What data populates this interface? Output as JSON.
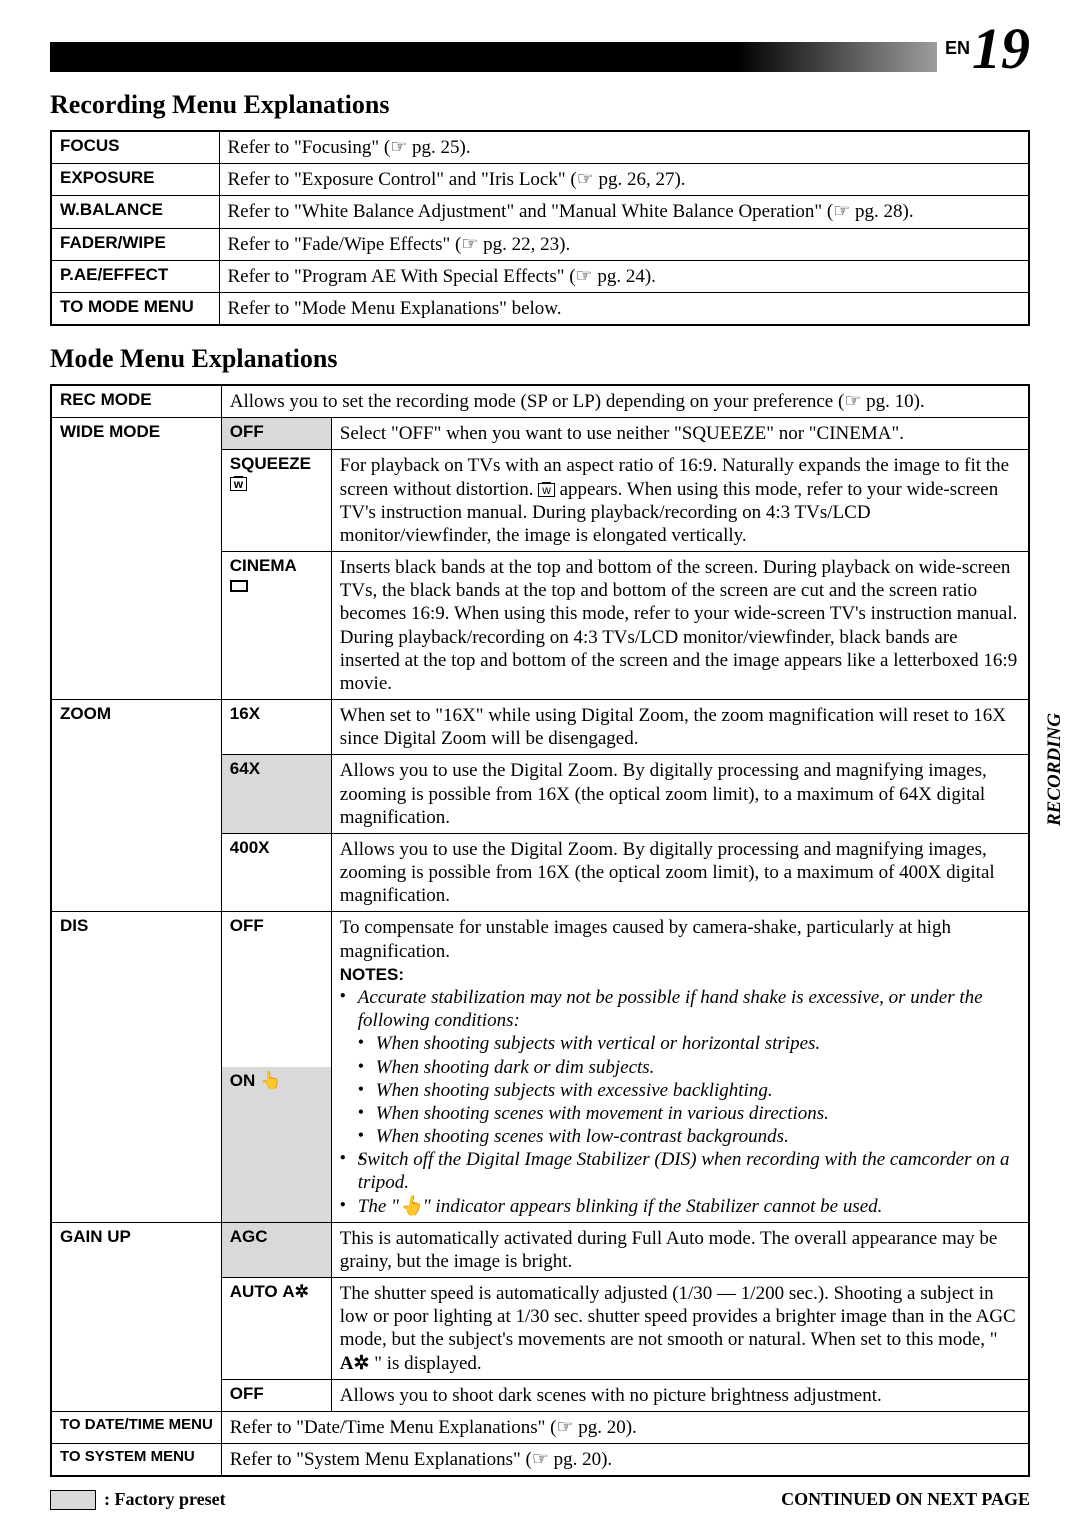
{
  "page": {
    "lang": "EN",
    "number": "19"
  },
  "side_tab": "RECORDING",
  "section1": {
    "title": "Recording Menu Explanations"
  },
  "section2": {
    "title": "Mode Menu Explanations"
  },
  "ref_icon": "☞",
  "table1": {
    "rows": [
      {
        "label": "FOCUS",
        "desc": "Refer to \"Focusing\" (☞ pg. 25)."
      },
      {
        "label": "EXPOSURE",
        "desc": "Refer to \"Exposure Control\" and \"Iris Lock\" (☞ pg. 26, 27)."
      },
      {
        "label": "W.BALANCE",
        "desc": "Refer to \"White Balance Adjustment\" and \"Manual White Balance Operation\" (☞ pg. 28)."
      },
      {
        "label": "FADER/WIPE",
        "desc": "Refer to \"Fade/Wipe Effects\" (☞ pg. 22, 23)."
      },
      {
        "label": "P.AE/EFFECT",
        "desc": "Refer to \"Program AE With Special Effects\" (☞ pg. 24)."
      },
      {
        "label": "TO MODE MENU",
        "desc": "Refer to \"Mode Menu Explanations\" below."
      }
    ]
  },
  "table2": {
    "rec_mode": {
      "label": "REC MODE",
      "desc": "Allows you to set the recording mode (SP or LP) depending on your preference (☞ pg. 10)."
    },
    "wide_mode": {
      "label": "WIDE MODE",
      "off": {
        "opt": "OFF",
        "desc": "Select \"OFF\" when you want to use neither \"SQUEEZE\" nor \"CINEMA\"."
      },
      "squeeze": {
        "opt": "SQUEEZE",
        "icon": "w",
        "desc_pre": "For playback on TVs with an aspect ratio of 16:9. Naturally expands the image to fit the screen without distortion. ",
        "desc_post": " appears. When using this mode, refer to your wide-screen TV's instruction manual. During playback/recording on 4:3 TVs/LCD monitor/viewfinder, the image is elongated vertically."
      },
      "cinema": {
        "opt": "CINEMA",
        "desc": "Inserts black bands at the top and bottom of the screen. During playback on wide-screen TVs, the black bands at the top and bottom of the screen are cut and the screen ratio becomes 16:9. When using this mode, refer to your wide-screen TV's instruction manual. During playback/recording on 4:3 TVs/LCD monitor/viewfinder, black bands are inserted at the top and bottom of the screen and the image appears like a letterboxed 16:9 movie."
      }
    },
    "zoom": {
      "label": "ZOOM",
      "x16": {
        "opt": "16X",
        "desc": "When set to \"16X\" while using Digital Zoom, the zoom magnification will reset to 16X since Digital Zoom will be disengaged."
      },
      "x64": {
        "opt": "64X",
        "desc": "Allows you to use the Digital Zoom. By digitally processing and magnifying images, zooming is possible from 16X (the optical zoom limit), to a maximum of 64X digital magnification."
      },
      "x400": {
        "opt": "400X",
        "desc": "Allows you to use the Digital Zoom. By digitally processing and magnifying images, zooming is possible from 16X (the optical zoom limit), to a maximum of 400X digital magnification."
      }
    },
    "dis": {
      "label": "DIS",
      "off": {
        "opt": "OFF"
      },
      "on": {
        "opt": "ON",
        "icon": "👆"
      },
      "desc_intro": "To compensate for unstable images caused by camera-shake, particularly at high magnification.",
      "notes_label": "NOTES:",
      "notes": [
        "Accurate stabilization may not be possible if hand shake is excessive, or under the following conditions:"
      ],
      "sub_notes_1": [
        "When shooting subjects with vertical or horizontal stripes."
      ],
      "sub_notes_2": [
        "When shooting dark or dim subjects.",
        "When shooting subjects with excessive backlighting.",
        "When shooting scenes with movement in various directions.",
        "When shooting scenes with low-contrast backgrounds."
      ],
      "note2": "Switch off the Digital Image Stabilizer (DIS) when recording with the camcorder on a tripod.",
      "note3_pre": "The \"",
      "note3_icon": "👆",
      "note3_post": "\" indicator appears blinking if the Stabilizer cannot be used."
    },
    "gain_up": {
      "label": "GAIN UP",
      "agc": {
        "opt": "AGC",
        "desc": "This is automatically activated during Full Auto mode. The overall appearance may be grainy, but the image is bright."
      },
      "auto": {
        "opt": "AUTO",
        "icon": "A✲",
        "desc_pre": "The shutter speed is automatically adjusted (1/30 — 1/200 sec.). Shooting a subject in low or poor lighting at 1/30 sec. shutter speed provides a brighter image than in the AGC mode, but the subject's movements are not smooth or natural. When set to this mode, \" ",
        "desc_post": " \" is displayed."
      },
      "off": {
        "opt": "OFF",
        "desc": "Allows you to shoot dark scenes with no picture brightness adjustment."
      }
    },
    "date_menu": {
      "label": "TO DATE/TIME MENU",
      "desc": "Refer to \"Date/Time Menu Explanations\" (☞ pg. 20)."
    },
    "system_menu": {
      "label": "TO SYSTEM MENU",
      "desc": "Refer to \"System Menu Explanations\" (☞ pg. 20)."
    }
  },
  "footer": {
    "preset": ": Factory preset",
    "continued": "CONTINUED ON NEXT PAGE"
  },
  "colors": {
    "text": "#000000",
    "bg": "#ffffff",
    "shade": "#d9d9d9"
  }
}
